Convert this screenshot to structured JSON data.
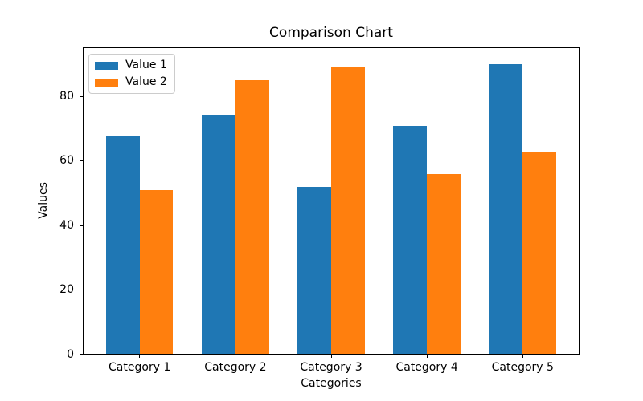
{
  "figure": {
    "background": "#ffffff"
  },
  "chart_data": {
    "type": "bar",
    "title": "Comparison Chart",
    "xlabel": "Categories",
    "ylabel": "Values",
    "categories": [
      "Category 1",
      "Category 2",
      "Category 3",
      "Category 4",
      "Category 5"
    ],
    "series": [
      {
        "name": "Value 1",
        "color": "#1f77b4",
        "values": [
          68,
          74,
          52,
          71,
          90
        ]
      },
      {
        "name": "Value 2",
        "color": "#ff7f0e",
        "values": [
          51,
          85,
          89,
          56,
          63
        ]
      }
    ],
    "ylim": [
      0,
      95
    ],
    "yticks": [
      0,
      20,
      40,
      60,
      80
    ],
    "bar_width_units": 0.35,
    "grid": false,
    "legend_position": "upper left"
  }
}
